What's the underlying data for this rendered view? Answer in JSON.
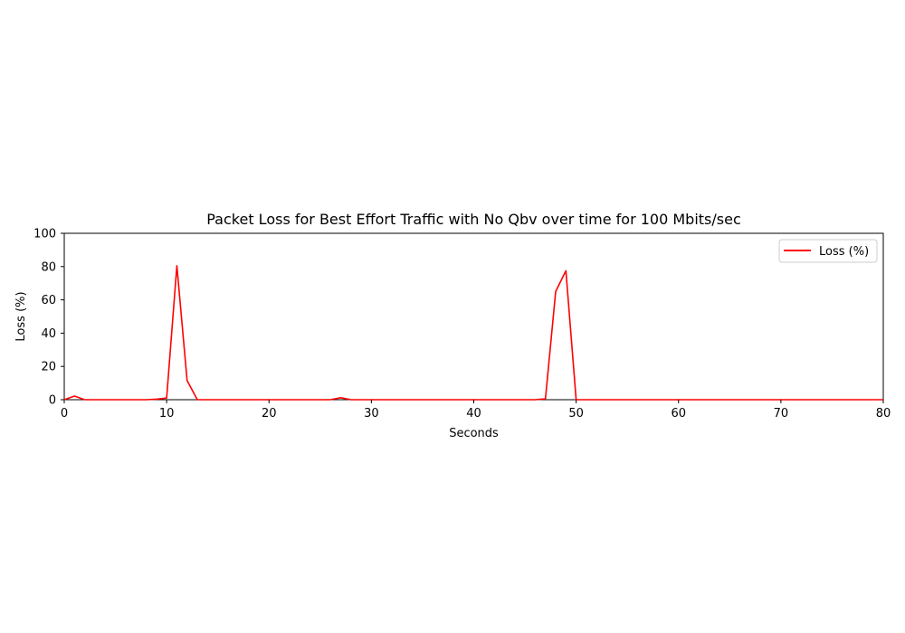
{
  "chart_data": {
    "type": "line",
    "title": "Packet Loss for Best Effort Traffic with No Qbv over time for 100 Mbits/sec",
    "xlabel": "Seconds",
    "ylabel": "Loss (%)",
    "xlim": [
      0,
      80
    ],
    "ylim": [
      0,
      100
    ],
    "xticks": [
      0,
      10,
      20,
      30,
      40,
      50,
      60,
      70,
      80
    ],
    "yticks": [
      0,
      20,
      40,
      60,
      80,
      100
    ],
    "grid": false,
    "legend_position": "top-right",
    "series": [
      {
        "name": "Loss (%)",
        "color": "#ff0000",
        "x": [
          0,
          1,
          2,
          3,
          4,
          5,
          6,
          7,
          8,
          9,
          10,
          11,
          12,
          13,
          14,
          15,
          16,
          17,
          18,
          19,
          20,
          21,
          22,
          23,
          24,
          25,
          26,
          27,
          28,
          29,
          30,
          31,
          32,
          33,
          34,
          35,
          36,
          37,
          38,
          39,
          40,
          41,
          42,
          43,
          44,
          45,
          46,
          47,
          48,
          49,
          50,
          51,
          52,
          53,
          54,
          55,
          56,
          57,
          58,
          59,
          60,
          61,
          62,
          63,
          64,
          65,
          66,
          67,
          68,
          69,
          70,
          71,
          72,
          73,
          74,
          75,
          76,
          77,
          78,
          79,
          80
        ],
        "y": [
          0,
          2.2,
          0,
          0,
          0,
          0,
          0,
          0,
          0,
          0.3,
          1,
          80.5,
          11.5,
          0,
          0,
          0,
          0,
          0,
          0,
          0,
          0,
          0,
          0,
          0,
          0,
          0,
          0,
          1.2,
          0,
          0,
          0,
          0,
          0,
          0,
          0,
          0,
          0,
          0,
          0,
          0,
          0,
          0,
          0,
          0,
          0,
          0,
          0,
          0.5,
          65,
          77.5,
          0,
          0,
          0,
          0,
          0,
          0,
          0,
          0,
          0,
          0,
          0,
          0,
          0,
          0,
          0,
          0,
          0,
          0,
          0,
          0,
          0,
          0,
          0,
          0,
          0,
          0,
          0,
          0,
          0,
          0,
          0
        ]
      }
    ]
  }
}
